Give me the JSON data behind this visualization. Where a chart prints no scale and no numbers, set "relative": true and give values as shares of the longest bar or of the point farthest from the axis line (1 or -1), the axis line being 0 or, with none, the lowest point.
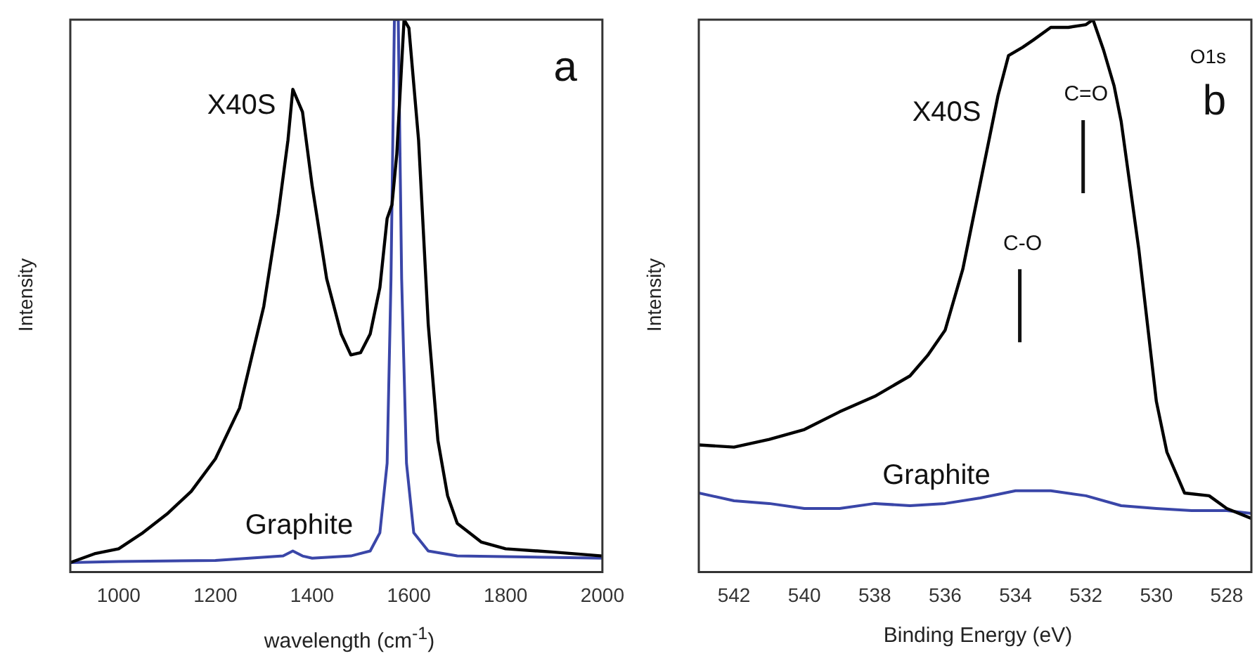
{
  "chart_data": [
    {
      "type": "line",
      "xlabel": "wavelength (cm$^{-1}$)",
      "ylabel": "Intensity",
      "relative": true,
      "xlim": [
        900,
        2000
      ],
      "xticks": [
        1000,
        1200,
        1400,
        1600,
        1800,
        2000
      ],
      "grid": false,
      "legend": false,
      "marker": "none",
      "line_style": "solid",
      "series": [
        {
          "name": "X40S",
          "color": "#000000",
          "x": [
            900,
            950,
            1000,
            1050,
            1100,
            1150,
            1200,
            1250,
            1300,
            1330,
            1350,
            1360,
            1380,
            1400,
            1430,
            1460,
            1480,
            1500,
            1520,
            1540,
            1555,
            1565,
            1575,
            1590,
            1600,
            1620,
            1640,
            1660,
            1680,
            1700,
            1750,
            1800,
            1900,
            2000
          ],
          "values": [
            0.017,
            0.033,
            0.042,
            0.071,
            0.105,
            0.146,
            0.205,
            0.297,
            0.481,
            0.649,
            0.782,
            0.874,
            0.833,
            0.699,
            0.531,
            0.431,
            0.393,
            0.397,
            0.431,
            0.515,
            0.64,
            0.665,
            0.757,
            1,
            0.985,
            0.782,
            0.448,
            0.238,
            0.138,
            0.088,
            0.054,
            0.042,
            0.036,
            0.029
          ]
        },
        {
          "name": "Graphite",
          "color": "#3a46a8",
          "x": [
            900,
            1000,
            1200,
            1340,
            1360,
            1380,
            1400,
            1480,
            1520,
            1540,
            1555,
            1563,
            1570,
            1578,
            1585,
            1595,
            1610,
            1640,
            1700,
            2000
          ],
          "values": [
            0.017,
            0.019,
            0.021,
            0.029,
            0.038,
            0.029,
            0.025,
            0.029,
            0.038,
            0.071,
            0.197,
            0.531,
            1,
            1,
            0.531,
            0.197,
            0.071,
            0.038,
            0.029,
            0.025
          ]
        }
      ],
      "annotations": [
        "a"
      ]
    },
    {
      "type": "line",
      "xlabel": "Binding Energy (eV)",
      "ylabel": "Intensity",
      "relative": true,
      "xlim": [
        543,
        527.3
      ],
      "xticks": [
        542,
        540,
        538,
        536,
        534,
        532,
        530,
        528
      ],
      "grid": false,
      "legend": false,
      "marker": "none",
      "line_style": "solid",
      "series": [
        {
          "name": "X40S",
          "color": "#000000",
          "x": [
            543,
            542,
            541,
            540,
            539,
            538,
            537,
            536.5,
            536,
            535.5,
            535,
            534.5,
            534.2,
            533.8,
            533.5,
            533,
            532.5,
            532,
            531.8,
            531.5,
            531.2,
            531,
            530.5,
            530,
            529.7,
            529.2,
            528.5,
            528,
            527.3
          ],
          "values": [
            0.23,
            0.226,
            0.24,
            0.258,
            0.29,
            0.318,
            0.355,
            0.392,
            0.438,
            0.548,
            0.705,
            0.862,
            0.935,
            0.95,
            0.963,
            0.986,
            0.986,
            0.991,
            1,
            0.945,
            0.88,
            0.816,
            0.585,
            0.309,
            0.217,
            0.143,
            0.138,
            0.115,
            0.097
          ]
        },
        {
          "name": "Graphite",
          "color": "#3a46a8",
          "x": [
            543,
            542,
            541,
            540,
            539,
            538,
            537,
            536,
            535,
            534,
            533,
            532,
            531,
            530,
            529,
            528,
            527.3
          ],
          "values": [
            0.143,
            0.129,
            0.124,
            0.115,
            0.115,
            0.124,
            0.12,
            0.124,
            0.134,
            0.147,
            0.147,
            0.138,
            0.12,
            0.115,
            0.111,
            0.111,
            0.106
          ]
        }
      ],
      "annotations": [
        {
          "text": "C=O",
          "x": 532.0
        },
        {
          "text": "C-O",
          "x": 533.8
        },
        "O1s",
        "b"
      ]
    }
  ]
}
